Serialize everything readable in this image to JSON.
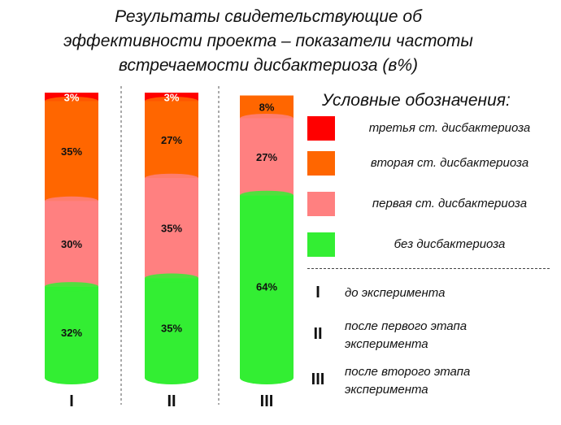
{
  "title_lines": [
    "Результаты свидетельствующие об",
    "эффективности проекта – показатели частоты",
    "встречаемости дисбактериоза (в%)"
  ],
  "chart_data": {
    "type": "bar",
    "stacked": true,
    "categories": [
      "I",
      "II",
      "III"
    ],
    "series": [
      {
        "name": "без дисбактериоза",
        "values": [
          32,
          35,
          64
        ],
        "color": "#33ee33"
      },
      {
        "name": "первая ст. дисбактериоза",
        "values": [
          30,
          35,
          27
        ],
        "color": "#ff8080"
      },
      {
        "name": "вторая ст. дисбактериоза",
        "values": [
          35,
          27,
          8
        ],
        "color": "#ff6600"
      },
      {
        "name": "третья ст. дисбактериоза",
        "values": [
          3,
          3,
          0
        ],
        "color": "#ff0000"
      }
    ],
    "data_labels": [
      [
        "32%",
        "30%",
        "35%",
        "3%"
      ],
      [
        "35%",
        "35%",
        "27%",
        "3%"
      ],
      [
        "64%",
        "27%",
        "8%",
        ""
      ]
    ],
    "ylim": [
      0,
      100
    ],
    "grid": false,
    "legend_position": "right"
  },
  "legend": {
    "title": "Условные обозначения:",
    "items": [
      {
        "label": "третья ст. дисбактериоза",
        "color": "#ff0000"
      },
      {
        "label": "вторая ст. дисбактериоза",
        "color": "#ff6600"
      },
      {
        "label": "первая ст. дисбактериоза",
        "color": "#ff8080"
      },
      {
        "label": "без дисбактериоза",
        "color": "#33ee33"
      }
    ]
  },
  "notes": [
    {
      "numeral": "I",
      "lines": [
        "до эксперимента"
      ]
    },
    {
      "numeral": "II",
      "lines": [
        "после первого этапа",
        "эксперимента"
      ]
    },
    {
      "numeral": "III",
      "lines": [
        "после второго этапа",
        "эксперимента"
      ]
    }
  ]
}
